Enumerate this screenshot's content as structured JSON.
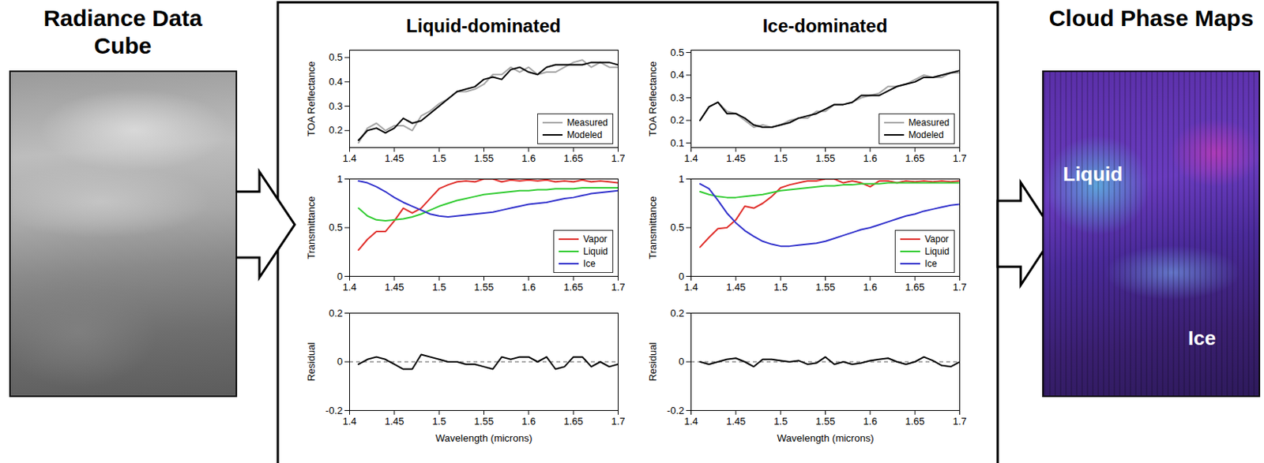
{
  "left_title": "Radiance Data Cube",
  "right_title": "Cloud Phase Maps",
  "map_labels": [
    "Liquid",
    "Ice"
  ],
  "chart_data": [
    {
      "type": "line",
      "title": "Liquid-dominated",
      "y_label": "TOA Reflectance",
      "x": [
        1.41,
        1.42,
        1.43,
        1.44,
        1.45,
        1.46,
        1.47,
        1.48,
        1.49,
        1.5,
        1.51,
        1.52,
        1.53,
        1.54,
        1.55,
        1.56,
        1.57,
        1.58,
        1.59,
        1.6,
        1.61,
        1.62,
        1.63,
        1.64,
        1.65,
        1.66,
        1.67,
        1.68,
        1.69,
        1.7
      ],
      "series": [
        {
          "name": "Measured",
          "color": "#a6a6a6",
          "values": [
            0.15,
            0.21,
            0.23,
            0.2,
            0.22,
            0.22,
            0.2,
            0.26,
            0.28,
            0.31,
            0.33,
            0.36,
            0.36,
            0.37,
            0.39,
            0.43,
            0.43,
            0.46,
            0.44,
            0.46,
            0.43,
            0.44,
            0.44,
            0.46,
            0.48,
            0.49,
            0.46,
            0.48,
            0.46,
            0.46
          ]
        },
        {
          "name": "Modeled",
          "color": "#000000",
          "values": [
            0.16,
            0.2,
            0.21,
            0.19,
            0.21,
            0.25,
            0.23,
            0.24,
            0.27,
            0.3,
            0.33,
            0.36,
            0.37,
            0.38,
            0.41,
            0.42,
            0.41,
            0.45,
            0.46,
            0.44,
            0.43,
            0.46,
            0.47,
            0.47,
            0.47,
            0.47,
            0.48,
            0.48,
            0.48,
            0.47
          ]
        }
      ],
      "xlim": [
        1.4,
        1.7
      ],
      "xticks": [
        1.4,
        1.45,
        1.5,
        1.55,
        1.6,
        1.65,
        1.7
      ],
      "ylim": [
        0.13,
        0.53
      ],
      "yticks": [
        0.2,
        0.3,
        0.4,
        0.5
      ],
      "legend": "lower right",
      "grid": false
    },
    {
      "type": "line",
      "y_label": "Transmittance",
      "x": [
        1.41,
        1.42,
        1.43,
        1.44,
        1.45,
        1.46,
        1.47,
        1.48,
        1.49,
        1.5,
        1.51,
        1.52,
        1.53,
        1.54,
        1.55,
        1.56,
        1.57,
        1.58,
        1.59,
        1.6,
        1.61,
        1.62,
        1.63,
        1.64,
        1.65,
        1.66,
        1.67,
        1.68,
        1.69,
        1.7
      ],
      "series": [
        {
          "name": "Vapor",
          "color": "#e0302c",
          "values": [
            0.27,
            0.38,
            0.46,
            0.46,
            0.57,
            0.7,
            0.65,
            0.7,
            0.8,
            0.9,
            0.94,
            0.97,
            0.98,
            0.97,
            1.0,
            1.0,
            0.97,
            0.99,
            0.98,
            0.99,
            0.98,
            0.99,
            0.97,
            0.98,
            0.97,
            0.99,
            0.97,
            0.98,
            0.97,
            0.96
          ]
        },
        {
          "name": "Liquid",
          "color": "#33cc33",
          "values": [
            0.7,
            0.62,
            0.58,
            0.57,
            0.58,
            0.59,
            0.61,
            0.64,
            0.68,
            0.72,
            0.75,
            0.78,
            0.8,
            0.82,
            0.84,
            0.85,
            0.86,
            0.87,
            0.88,
            0.88,
            0.89,
            0.89,
            0.9,
            0.9,
            0.9,
            0.91,
            0.91,
            0.91,
            0.91,
            0.91
          ]
        },
        {
          "name": "Ice",
          "color": "#3333cc",
          "values": [
            0.98,
            0.96,
            0.92,
            0.87,
            0.81,
            0.76,
            0.72,
            0.68,
            0.64,
            0.62,
            0.61,
            0.62,
            0.63,
            0.64,
            0.65,
            0.66,
            0.68,
            0.7,
            0.72,
            0.74,
            0.75,
            0.76,
            0.78,
            0.8,
            0.81,
            0.83,
            0.85,
            0.86,
            0.87,
            0.88
          ]
        }
      ],
      "xlim": [
        1.4,
        1.7
      ],
      "xticks": [
        1.4,
        1.45,
        1.5,
        1.55,
        1.6,
        1.65,
        1.7
      ],
      "ylim": [
        0,
        1
      ],
      "yticks": [
        0,
        0.5,
        1
      ],
      "legend": "lower right",
      "grid": false
    },
    {
      "type": "line",
      "y_label": "Residual",
      "x_label": "Wavelength (microns)",
      "x": [
        1.41,
        1.42,
        1.43,
        1.44,
        1.45,
        1.46,
        1.47,
        1.48,
        1.49,
        1.5,
        1.51,
        1.52,
        1.53,
        1.54,
        1.55,
        1.56,
        1.57,
        1.58,
        1.59,
        1.6,
        1.61,
        1.62,
        1.63,
        1.64,
        1.65,
        1.66,
        1.67,
        1.68,
        1.69,
        1.7
      ],
      "series": [
        {
          "color": "#000000",
          "values": [
            -0.01,
            0.01,
            0.02,
            0.01,
            -0.01,
            -0.03,
            -0.03,
            0.03,
            0.02,
            0.01,
            0.0,
            0.0,
            -0.01,
            -0.01,
            -0.02,
            -0.03,
            0.02,
            0.01,
            0.02,
            0.02,
            0.0,
            0.02,
            -0.03,
            -0.02,
            0.02,
            0.02,
            -0.02,
            0.0,
            -0.02,
            -0.01
          ]
        }
      ],
      "reference_y": 0,
      "line_style": "dashed",
      "xlim": [
        1.4,
        1.7
      ],
      "xticks": [
        1.4,
        1.45,
        1.5,
        1.55,
        1.6,
        1.65,
        1.7
      ],
      "ylim": [
        -0.2,
        0.2
      ],
      "yticks": [
        -0.2,
        0,
        0.2
      ],
      "grid": false
    },
    {
      "type": "line",
      "title": "Ice-dominated",
      "y_label": "TOA Reflectance",
      "x": [
        1.41,
        1.42,
        1.43,
        1.44,
        1.45,
        1.46,
        1.47,
        1.48,
        1.49,
        1.5,
        1.51,
        1.52,
        1.53,
        1.54,
        1.55,
        1.56,
        1.57,
        1.58,
        1.59,
        1.6,
        1.61,
        1.62,
        1.63,
        1.64,
        1.65,
        1.66,
        1.67,
        1.68,
        1.69,
        1.7
      ],
      "series": [
        {
          "name": "Measured",
          "color": "#a6a6a6",
          "values": [
            0.2,
            0.26,
            0.28,
            0.24,
            0.23,
            0.2,
            0.17,
            0.18,
            0.17,
            0.18,
            0.2,
            0.21,
            0.21,
            0.24,
            0.24,
            0.27,
            0.27,
            0.28,
            0.3,
            0.31,
            0.32,
            0.35,
            0.35,
            0.36,
            0.38,
            0.4,
            0.39,
            0.39,
            0.41,
            0.41
          ]
        },
        {
          "name": "Modeled",
          "color": "#000000",
          "values": [
            0.2,
            0.26,
            0.28,
            0.23,
            0.23,
            0.21,
            0.18,
            0.17,
            0.17,
            0.18,
            0.19,
            0.21,
            0.22,
            0.23,
            0.25,
            0.27,
            0.27,
            0.28,
            0.31,
            0.31,
            0.31,
            0.33,
            0.35,
            0.36,
            0.37,
            0.39,
            0.39,
            0.4,
            0.41,
            0.42
          ]
        }
      ],
      "xlim": [
        1.4,
        1.7
      ],
      "xticks": [
        1.4,
        1.45,
        1.5,
        1.55,
        1.6,
        1.65,
        1.7
      ],
      "ylim": [
        0.08,
        0.51
      ],
      "yticks": [
        0.1,
        0.2,
        0.3,
        0.4,
        0.5
      ],
      "legend": "lower right",
      "grid": false
    },
    {
      "type": "line",
      "y_label": "Transmittance",
      "x": [
        1.41,
        1.42,
        1.43,
        1.44,
        1.45,
        1.46,
        1.47,
        1.48,
        1.49,
        1.5,
        1.51,
        1.52,
        1.53,
        1.54,
        1.55,
        1.56,
        1.57,
        1.58,
        1.59,
        1.6,
        1.61,
        1.62,
        1.63,
        1.64,
        1.65,
        1.66,
        1.67,
        1.68,
        1.69,
        1.7
      ],
      "series": [
        {
          "name": "Vapor",
          "color": "#e0302c",
          "values": [
            0.3,
            0.4,
            0.49,
            0.5,
            0.58,
            0.72,
            0.7,
            0.75,
            0.82,
            0.91,
            0.94,
            0.96,
            0.98,
            0.98,
            1.0,
            1.0,
            0.96,
            0.98,
            0.96,
            0.92,
            0.98,
            0.98,
            0.96,
            0.98,
            0.97,
            0.98,
            0.97,
            0.98,
            0.97,
            0.98
          ]
        },
        {
          "name": "Liquid",
          "color": "#33cc33",
          "values": [
            0.87,
            0.84,
            0.82,
            0.81,
            0.81,
            0.82,
            0.83,
            0.84,
            0.86,
            0.88,
            0.89,
            0.9,
            0.91,
            0.92,
            0.93,
            0.93,
            0.94,
            0.94,
            0.95,
            0.95,
            0.95,
            0.96,
            0.96,
            0.96,
            0.96,
            0.96,
            0.96,
            0.96,
            0.96,
            0.96
          ]
        },
        {
          "name": "Ice",
          "color": "#3333cc",
          "values": [
            0.95,
            0.9,
            0.78,
            0.65,
            0.55,
            0.47,
            0.41,
            0.36,
            0.33,
            0.31,
            0.31,
            0.32,
            0.33,
            0.34,
            0.36,
            0.39,
            0.42,
            0.45,
            0.48,
            0.5,
            0.53,
            0.56,
            0.59,
            0.62,
            0.64,
            0.67,
            0.69,
            0.71,
            0.73,
            0.74
          ]
        }
      ],
      "xlim": [
        1.4,
        1.7
      ],
      "xticks": [
        1.4,
        1.45,
        1.5,
        1.55,
        1.6,
        1.65,
        1.7
      ],
      "ylim": [
        0,
        1
      ],
      "yticks": [
        0,
        0.5,
        1
      ],
      "legend": "lower right",
      "grid": false
    },
    {
      "type": "line",
      "y_label": "Residual",
      "x_label": "Wavelength (microns)",
      "x": [
        1.41,
        1.42,
        1.43,
        1.44,
        1.45,
        1.46,
        1.47,
        1.48,
        1.49,
        1.5,
        1.51,
        1.52,
        1.53,
        1.54,
        1.55,
        1.56,
        1.57,
        1.58,
        1.59,
        1.6,
        1.61,
        1.62,
        1.63,
        1.64,
        1.65,
        1.66,
        1.67,
        1.68,
        1.69,
        1.7
      ],
      "series": [
        {
          "color": "#000000",
          "values": [
            0.0,
            -0.01,
            0.0,
            0.01,
            0.015,
            0.0,
            -0.02,
            0.01,
            0.01,
            0.005,
            0.0,
            0.005,
            -0.01,
            -0.005,
            0.02,
            -0.01,
            0.0,
            -0.01,
            -0.005,
            0.005,
            0.01,
            0.015,
            0.0,
            -0.01,
            0.0,
            0.02,
            0.005,
            -0.015,
            -0.02,
            0.0
          ]
        }
      ],
      "reference_y": 0,
      "line_style": "dashed",
      "xlim": [
        1.4,
        1.7
      ],
      "xticks": [
        1.4,
        1.45,
        1.5,
        1.55,
        1.6,
        1.65,
        1.7
      ],
      "ylim": [
        -0.2,
        0.2
      ],
      "yticks": [
        -0.2,
        0,
        0.2
      ],
      "grid": false
    }
  ]
}
